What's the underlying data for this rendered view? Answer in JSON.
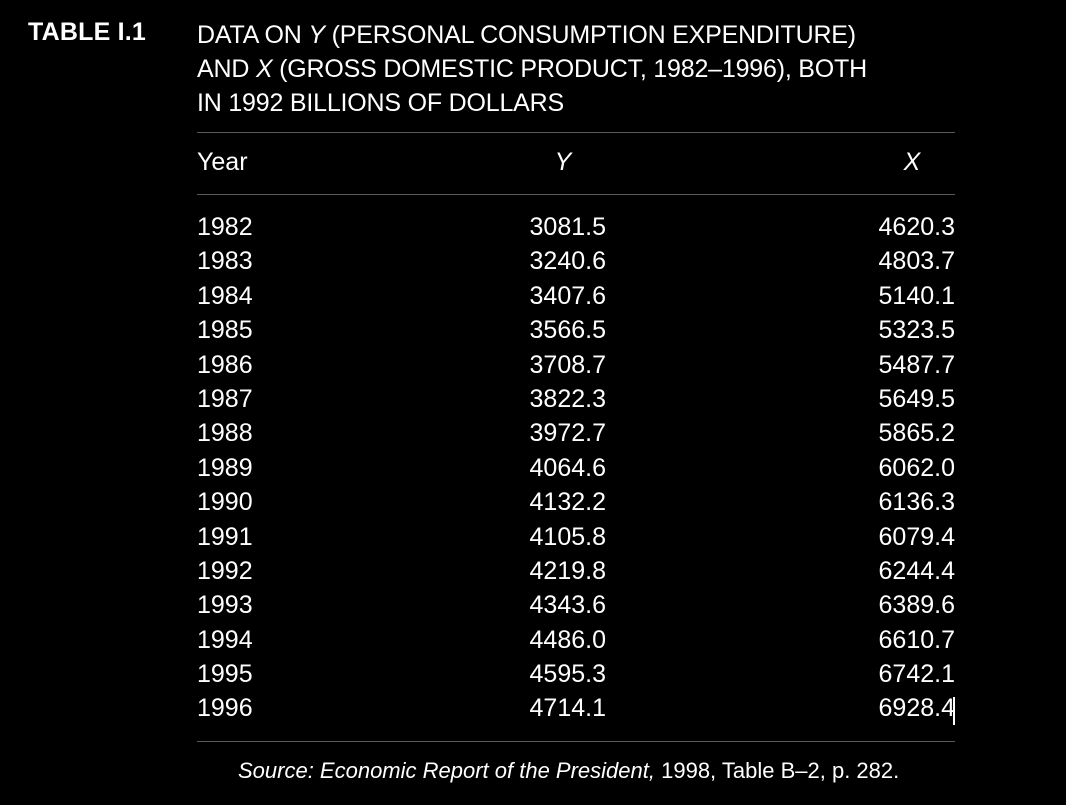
{
  "table_label": "TABLE I.1",
  "caption": {
    "part1": "DATA ON ",
    "y_var": "Y",
    "part2": " (PERSONAL CONSUMPTION EXPENDITURE)",
    "x_var": "X",
    "part3": " (GROSS DOMESTIC PRODUCT, 1982–1996), BOTH",
    "line2_start": "AND ",
    "line3": "IN 1992 BILLIONS OF DOLLARS"
  },
  "columns": {
    "year": "Year",
    "y": "Y",
    "x": "X"
  },
  "rows": [
    {
      "year": "1982",
      "y": "3081.5",
      "x": "4620.3"
    },
    {
      "year": "1983",
      "y": "3240.6",
      "x": "4803.7"
    },
    {
      "year": "1984",
      "y": "3407.6",
      "x": "5140.1"
    },
    {
      "year": "1985",
      "y": "3566.5",
      "x": "5323.5"
    },
    {
      "year": "1986",
      "y": "3708.7",
      "x": "5487.7"
    },
    {
      "year": "1987",
      "y": "3822.3",
      "x": "5649.5"
    },
    {
      "year": "1988",
      "y": "3972.7",
      "x": "5865.2"
    },
    {
      "year": "1989",
      "y": "4064.6",
      "x": "6062.0"
    },
    {
      "year": "1990",
      "y": "4132.2",
      "x": "6136.3"
    },
    {
      "year": "1991",
      "y": "4105.8",
      "x": "6079.4"
    },
    {
      "year": "1992",
      "y": "4219.8",
      "x": "6244.4"
    },
    {
      "year": "1993",
      "y": "4343.6",
      "x": "6389.6"
    },
    {
      "year": "1994",
      "y": "4486.0",
      "x": "6610.7"
    },
    {
      "year": "1995",
      "y": "4595.3",
      "x": "6742.1"
    },
    {
      "year": "1996",
      "y": "4714.1",
      "x": "6928.4"
    }
  ],
  "source": {
    "prefix": "Source: Economic Report of the President,",
    "suffix": " 1998, Table B–2, p. 282."
  },
  "colors": {
    "background": "#000000",
    "text": "#ffffff",
    "rule": "#5a5a5a"
  }
}
